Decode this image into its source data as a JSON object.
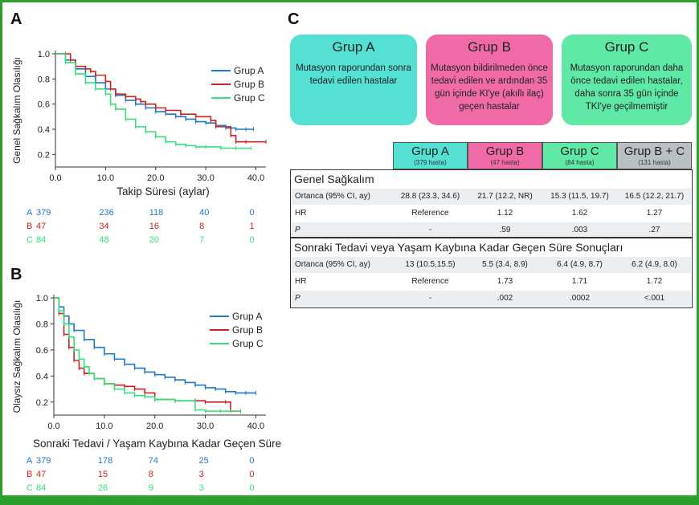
{
  "panels": {
    "a": "A",
    "b": "B",
    "c": "C"
  },
  "colors": {
    "A": "#1f78c8",
    "B": "#cc2222",
    "C": "#33e07a"
  },
  "chart_data": [
    {
      "type": "line",
      "ylabel": "Genel Sağkalım Olasılığı",
      "xlabel": "Takip Süresi (aylar)",
      "xlim": [
        0,
        42
      ],
      "ylim": [
        0.1,
        1.0
      ],
      "xticks": [
        0,
        10,
        20,
        30,
        40
      ],
      "xtick_labels": [
        "0.0",
        "10.0",
        "20.0",
        "30.0",
        "40.0"
      ],
      "yticks": [
        0.2,
        0.4,
        0.6,
        0.8,
        1.0
      ],
      "ytick_labels": [
        "0.2",
        "0.4",
        "0.6",
        "0.8",
        "1.0"
      ],
      "legend": [
        "Grup A",
        "Grup B",
        "Grup C"
      ],
      "series": [
        {
          "name": "Grup A",
          "x": [
            0,
            2,
            4,
            6,
            8,
            10,
            12,
            14,
            16,
            18,
            20,
            22,
            24,
            26,
            28,
            30,
            32,
            34,
            36,
            38,
            39.5
          ],
          "y": [
            1.0,
            0.95,
            0.88,
            0.82,
            0.77,
            0.72,
            0.67,
            0.63,
            0.6,
            0.57,
            0.54,
            0.52,
            0.5,
            0.48,
            0.46,
            0.45,
            0.43,
            0.41,
            0.4,
            0.4,
            0.4
          ]
        },
        {
          "name": "Grup B",
          "x": [
            0,
            2,
            3,
            4,
            6,
            7,
            8,
            10,
            11,
            12,
            14,
            16,
            17,
            18,
            20,
            22,
            25,
            28,
            31,
            32,
            35,
            36,
            38,
            42
          ],
          "y": [
            1.0,
            1.0,
            0.95,
            0.9,
            0.88,
            0.86,
            0.83,
            0.78,
            0.72,
            0.68,
            0.66,
            0.64,
            0.62,
            0.6,
            0.57,
            0.55,
            0.52,
            0.5,
            0.47,
            0.42,
            0.35,
            0.3,
            0.3,
            0.3
          ]
        },
        {
          "name": "Grup C",
          "x": [
            0,
            2,
            4,
            6,
            8,
            10,
            11,
            12,
            14,
            16,
            18,
            20,
            22,
            24,
            26,
            28,
            30,
            33,
            36,
            39
          ],
          "y": [
            1.0,
            0.93,
            0.84,
            0.77,
            0.72,
            0.68,
            0.6,
            0.56,
            0.48,
            0.42,
            0.38,
            0.34,
            0.3,
            0.28,
            0.27,
            0.26,
            0.26,
            0.25,
            0.25,
            0.25
          ]
        }
      ],
      "risk_table": {
        "rows": [
          {
            "group": "A",
            "counts": [
              "379",
              "236",
              "118",
              "40",
              "0"
            ]
          },
          {
            "group": "B",
            "counts": [
              "47",
              "34",
              "16",
              "8",
              "1"
            ]
          },
          {
            "group": "C",
            "counts": [
              "84",
              "48",
              "20",
              "7",
              "0"
            ]
          }
        ]
      }
    },
    {
      "type": "line",
      "ylabel": "Olaysız Sağkalım Olasılığı",
      "xlabel": "Sonraki Tedavi / Yaşam Kaybına Kadar Geçen Süre",
      "xlim": [
        0,
        42
      ],
      "ylim": [
        0.1,
        1.0
      ],
      "xticks": [
        0,
        10,
        20,
        30,
        40
      ],
      "xtick_labels": [
        "0.0",
        "10.0",
        "20.0",
        "30.0",
        "40.0"
      ],
      "yticks": [
        0.2,
        0.4,
        0.6,
        0.8,
        1.0
      ],
      "ytick_labels": [
        "0.2",
        "0.4",
        "0.6",
        "0.8",
        "1.0"
      ],
      "legend": [
        "Grup A",
        "Grup B",
        "Grup C"
      ],
      "series": [
        {
          "name": "Grup A",
          "x": [
            0,
            1,
            2,
            3,
            4,
            6,
            8,
            10,
            12,
            14,
            16,
            18,
            20,
            22,
            24,
            26,
            28,
            30,
            32,
            34,
            36,
            38,
            40
          ],
          "y": [
            1.0,
            0.93,
            0.86,
            0.8,
            0.75,
            0.68,
            0.62,
            0.57,
            0.53,
            0.49,
            0.46,
            0.43,
            0.41,
            0.39,
            0.37,
            0.35,
            0.33,
            0.31,
            0.3,
            0.28,
            0.27,
            0.27,
            0.27
          ]
        },
        {
          "name": "Grup B",
          "x": [
            0,
            1,
            2,
            3,
            4,
            5,
            6,
            8,
            10,
            12,
            14,
            16,
            18,
            20,
            24,
            28,
            30,
            34,
            35,
            37
          ],
          "y": [
            1.0,
            0.88,
            0.72,
            0.62,
            0.52,
            0.46,
            0.42,
            0.38,
            0.34,
            0.33,
            0.32,
            0.3,
            0.27,
            0.22,
            0.21,
            0.21,
            0.2,
            0.2,
            0.13,
            0.13
          ]
        },
        {
          "name": "Grup C",
          "x": [
            0,
            1,
            2,
            3,
            4,
            5,
            6,
            7,
            8,
            10,
            12,
            14,
            16,
            18,
            20,
            24,
            28,
            30,
            33,
            35,
            37
          ],
          "y": [
            1.0,
            0.9,
            0.8,
            0.7,
            0.6,
            0.53,
            0.47,
            0.42,
            0.38,
            0.34,
            0.3,
            0.27,
            0.25,
            0.24,
            0.22,
            0.21,
            0.14,
            0.13,
            0.13,
            0.13,
            0.13
          ]
        }
      ],
      "risk_table": {
        "rows": [
          {
            "group": "A",
            "counts": [
              "379",
              "178",
              "74",
              "25",
              "0"
            ]
          },
          {
            "group": "B",
            "counts": [
              "47",
              "15",
              "8",
              "3",
              "0"
            ]
          },
          {
            "group": "C",
            "counts": [
              "84",
              "26",
              "9",
              "3",
              "0"
            ]
          }
        ]
      }
    }
  ],
  "groups": [
    {
      "title": "Grup A",
      "desc": "Mutasyon raporundan sonra tedavi edilen hastalar",
      "color": "#55e0d4"
    },
    {
      "title": "Grup B",
      "desc": "Mutasyon bildirilmeden önce tedavi edilen ve ardından 35 gün içinde KI'ye (akıllı ilaç) geçen hastalar",
      "color": "#f06aa8"
    },
    {
      "title": "Grup C",
      "desc": "Mutasyon raporundan daha önce tedavi edilen hastalar, daha sonra 35 gün içinde TKI'ye geçilmemiştir",
      "color": "#5fe8a6"
    }
  ],
  "table": {
    "headers": [
      {
        "name": "Grup A",
        "sub": "(379 hasta)",
        "color": "#55e0d4"
      },
      {
        "name": "Grup B",
        "sub": "(47 hasta)",
        "color": "#f06aa8"
      },
      {
        "name": "Grup C",
        "sub": "(84 hasta)",
        "color": "#5fe8a6"
      },
      {
        "name": "Grup B + C",
        "sub": "(131 hasta)",
        "color": "#b8c0c4"
      }
    ],
    "sections": [
      {
        "title": "Genel Sağkalım",
        "rows": [
          {
            "label": "Ortanca (95% CI, ay)",
            "values": [
              "28.8 (23.3, 34.6)",
              "21.7 (12.2, NR)",
              "15.3 (11.5, 19.7)",
              "16.5 (12.2, 21.7)"
            ]
          },
          {
            "label": "HR",
            "values": [
              "Reference",
              "1.12",
              "1.62",
              "1.27"
            ]
          },
          {
            "label": "P",
            "values": [
              "-",
              ".59",
              ".003",
              ".27"
            ]
          }
        ]
      },
      {
        "title": "Sonraki Tedavi veya Yaşam Kaybına Kadar Geçen Süre Sonuçları",
        "rows": [
          {
            "label": "Ortanca (95% CI, ay)",
            "values": [
              "13 (10.5,15.5)",
              "5.5 (3.4, 8.9)",
              "6.4 (4.9, 8.7)",
              "6.2 (4.9, 8.0)"
            ]
          },
          {
            "label": "HR",
            "values": [
              "Reference",
              "1.73",
              "1.71",
              "1.72"
            ]
          },
          {
            "label": "P",
            "values": [
              "-",
              ".002",
              ".0002",
              "<.001"
            ]
          }
        ]
      }
    ]
  }
}
